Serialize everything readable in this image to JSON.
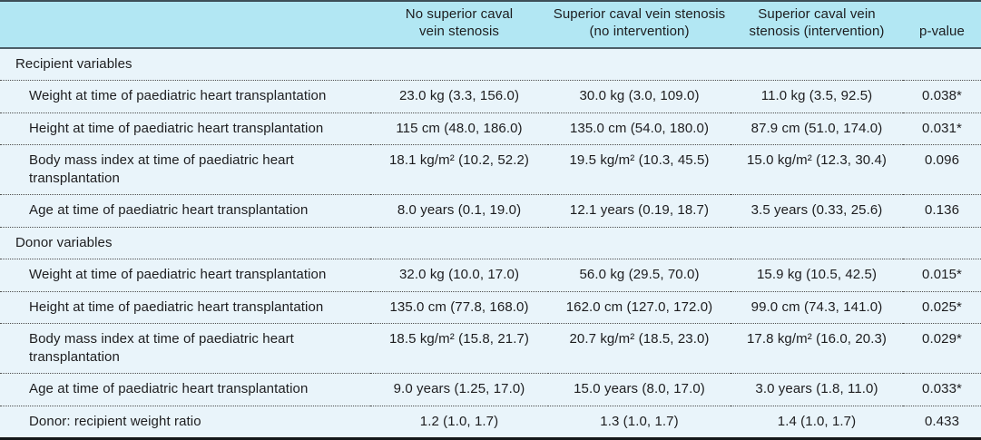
{
  "colors": {
    "header_bg": "#b2e7f3",
    "body_bg": "#e9f4fa",
    "top_rule": "#3d4f57",
    "header_rule": "#4d5f68",
    "bottom_rule": "#14181a",
    "text": "#1d1d1f"
  },
  "table": {
    "columns": [
      {
        "label": ""
      },
      {
        "label": "No superior caval\nvein stenosis"
      },
      {
        "label": "Superior caval vein stenosis\n(no intervention)"
      },
      {
        "label": "Superior caval vein\nstenosis (intervention)"
      },
      {
        "label": "p-value"
      }
    ],
    "sections": [
      {
        "title": "Recipient variables",
        "rows": [
          {
            "label": "Weight at time of paediatric heart transplantation",
            "values": [
              "23.0 kg (3.3, 156.0)",
              "30.0 kg (3.0, 109.0)",
              "11.0 kg (3.5, 92.5)",
              "0.038*"
            ]
          },
          {
            "label": "Height at time of paediatric heart transplantation",
            "values": [
              "115 cm (48.0, 186.0)",
              "135.0 cm (54.0, 180.0)",
              "87.9 cm (51.0, 174.0)",
              "0.031*"
            ]
          },
          {
            "label": "Body mass index at time of paediatric heart transplantation",
            "values": [
              "18.1 kg/m² (10.2, 52.2)",
              "19.5 kg/m² (10.3, 45.5)",
              "15.0 kg/m² (12.3, 30.4)",
              "0.096"
            ]
          },
          {
            "label": "Age at time of paediatric heart transplantation",
            "values": [
              "8.0 years (0.1, 19.0)",
              "12.1 years (0.19, 18.7)",
              "3.5 years (0.33, 25.6)",
              "0.136"
            ]
          }
        ]
      },
      {
        "title": "Donor variables",
        "rows": [
          {
            "label": "Weight at time of paediatric heart transplantation",
            "values": [
              "32.0 kg (10.0, 17.0)",
              "56.0 kg (29.5, 70.0)",
              "15.9 kg (10.5, 42.5)",
              "0.015*"
            ]
          },
          {
            "label": "Height at time of paediatric heart transplantation",
            "values": [
              "135.0 cm (77.8, 168.0)",
              "162.0 cm (127.0, 172.0)",
              "99.0 cm (74.3, 141.0)",
              "0.025*"
            ]
          },
          {
            "label": "Body mass index at time of paediatric heart transplantation",
            "values": [
              "18.5 kg/m² (15.8, 21.7)",
              "20.7 kg/m² (18.5, 23.0)",
              "17.8 kg/m² (16.0, 20.3)",
              "0.029*"
            ]
          },
          {
            "label": "Age at time of paediatric heart transplantation",
            "values": [
              "9.0 years (1.25, 17.0)",
              "15.0 years (8.0, 17.0)",
              "3.0 years (1.8, 11.0)",
              "0.033*"
            ]
          },
          {
            "label": "Donor: recipient weight ratio",
            "values": [
              "1.2 (1.0, 1.7)",
              "1.3 (1.0, 1.7)",
              "1.4 (1.0, 1.7)",
              "0.433"
            ]
          }
        ]
      }
    ]
  }
}
